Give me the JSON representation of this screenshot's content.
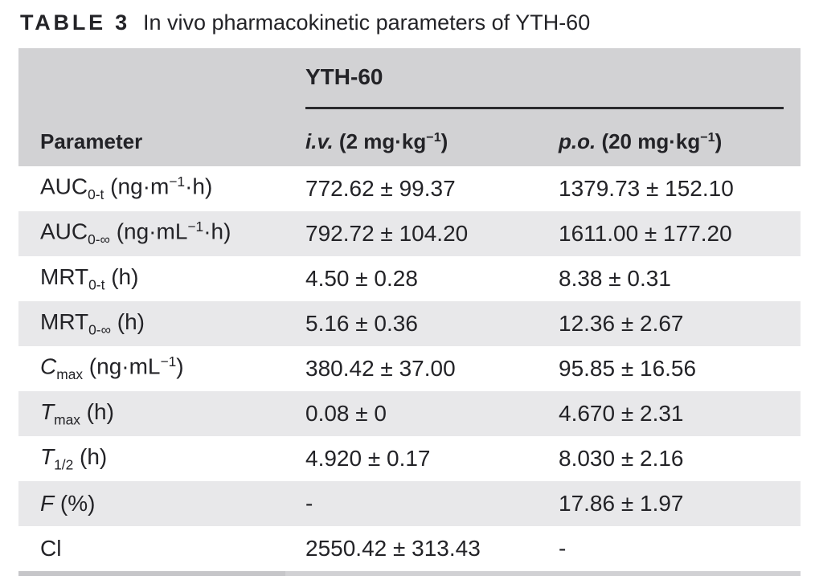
{
  "caption": {
    "label": "TABLE 3",
    "title": "In vivo pharmacokinetic parameters of YTH-60"
  },
  "colors": {
    "header_bg": "#d2d2d4",
    "row_alt_bg": "#e8e8ea",
    "text": "#232327",
    "group_rule": "#2b2b2e",
    "bottom_rule": "#c9c9cc"
  },
  "table": {
    "group_header": "YTH-60",
    "header": {
      "parameter": [
        {
          "t": "Parameter"
        }
      ],
      "iv": [
        {
          "t": "i.v.",
          "s": "i"
        },
        {
          "t": " (2 mg·kg"
        },
        {
          "t": "−1",
          "s": "sup"
        },
        {
          "t": ")"
        }
      ],
      "po": [
        {
          "t": "p.o.",
          "s": "i"
        },
        {
          "t": " (20 mg·kg"
        },
        {
          "t": "−1",
          "s": "sup"
        },
        {
          "t": ")"
        }
      ]
    },
    "rows": [
      {
        "param": [
          {
            "t": "AUC"
          },
          {
            "t": "0-t",
            "s": "sub"
          },
          {
            "t": " (ng·m"
          },
          {
            "t": "−1",
            "s": "sup"
          },
          {
            "t": "·h)"
          }
        ],
        "iv": "772.62 ± 99.37",
        "po": "1379.73 ± 152.10"
      },
      {
        "param": [
          {
            "t": "AUC"
          },
          {
            "t": "0-∞",
            "s": "sub"
          },
          {
            "t": " (ng·mL"
          },
          {
            "t": "−1",
            "s": "sup"
          },
          {
            "t": "·h)"
          }
        ],
        "iv": "792.72 ± 104.20",
        "po": "1611.00 ± 177.20"
      },
      {
        "param": [
          {
            "t": "MRT"
          },
          {
            "t": "0-t",
            "s": "sub"
          },
          {
            "t": " (h)"
          }
        ],
        "iv": "4.50 ± 0.28",
        "po": "8.38 ± 0.31"
      },
      {
        "param": [
          {
            "t": "MRT"
          },
          {
            "t": "0-∞",
            "s": "sub"
          },
          {
            "t": " (h)"
          }
        ],
        "iv": "5.16 ± 0.36",
        "po": "12.36 ± 2.67"
      },
      {
        "param": [
          {
            "t": "C",
            "s": "i"
          },
          {
            "t": "max",
            "s": "sub"
          },
          {
            "t": " (ng·mL"
          },
          {
            "t": "−1",
            "s": "sup"
          },
          {
            "t": ")"
          }
        ],
        "iv": "380.42 ± 37.00",
        "po": "95.85 ± 16.56"
      },
      {
        "param": [
          {
            "t": "T",
            "s": "i"
          },
          {
            "t": "max",
            "s": "sub"
          },
          {
            "t": " (h)"
          }
        ],
        "iv": "0.08 ± 0",
        "po": "4.670 ± 2.31"
      },
      {
        "param": [
          {
            "t": "T",
            "s": "i"
          },
          {
            "t": "1/2",
            "s": "sub"
          },
          {
            "t": " (h)"
          }
        ],
        "iv": "4.920 ± 0.17",
        "po": "8.030 ± 2.16"
      },
      {
        "param": [
          {
            "t": "F",
            "s": "i"
          },
          {
            "t": " (%)"
          }
        ],
        "iv": "-",
        "po": "17.86 ± 1.97"
      },
      {
        "param": [
          {
            "t": "Cl"
          }
        ],
        "iv": "2550.42 ± 313.43",
        "po": "-"
      }
    ]
  },
  "chart_data": {
    "type": "table",
    "title": "TABLE 3 In vivo pharmacokinetic parameters of YTH-60",
    "columns": [
      "Parameter",
      "YTH-60 — i.v. (2 mg·kg−1)",
      "YTH-60 — p.o. (20 mg·kg−1)"
    ],
    "rows": [
      [
        "AUC0-t (ng·m−1·h)",
        "772.62 ± 99.37",
        "1379.73 ± 152.10"
      ],
      [
        "AUC0-∞ (ng·mL−1·h)",
        "792.72 ± 104.20",
        "1611.00 ± 177.20"
      ],
      [
        "MRT0-t (h)",
        "4.50 ± 0.28",
        "8.38 ± 0.31"
      ],
      [
        "MRT0-∞ (h)",
        "5.16 ± 0.36",
        "12.36 ± 2.67"
      ],
      [
        "Cmax (ng·mL−1)",
        "380.42 ± 37.00",
        "95.85 ± 16.56"
      ],
      [
        "Tmax (h)",
        "0.08 ± 0",
        "4.670 ± 2.31"
      ],
      [
        "T1/2 (h)",
        "4.920 ± 0.17",
        "8.030 ± 2.16"
      ],
      [
        "F (%)",
        "-",
        "17.86 ± 1.97"
      ],
      [
        "Cl",
        "2550.42 ± 313.43",
        "-"
      ]
    ]
  }
}
